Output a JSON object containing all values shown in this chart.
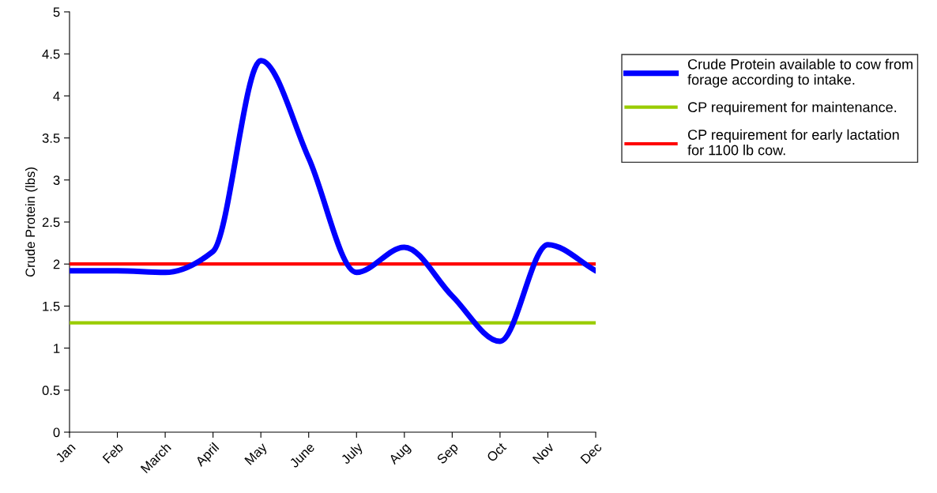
{
  "chart_data": {
    "type": "line",
    "ylabel": "Crude Protein (lbs)",
    "categories": [
      "Jan",
      "Feb",
      "March",
      "April",
      "May",
      "June",
      "July",
      "Aug",
      "Sep",
      "Oct",
      "Nov",
      "Dec"
    ],
    "series": [
      {
        "name": "Crude Protein available to cow from forage according to intake.",
        "color": "#0000ff",
        "values": [
          1.92,
          1.92,
          1.9,
          2.15,
          4.42,
          3.26,
          1.9,
          2.2,
          1.62,
          1.08,
          2.23,
          1.92
        ]
      },
      {
        "name": "CP requirement for maintenance.",
        "color": "#99cc00",
        "values": [
          1.3,
          1.3,
          1.3,
          1.3,
          1.3,
          1.3,
          1.3,
          1.3,
          1.3,
          1.3,
          1.3,
          1.3
        ]
      },
      {
        "name": "CP requirement for early lactation for 1100 lb cow.",
        "color": "#ff0000",
        "values": [
          2,
          2,
          2,
          2,
          2,
          2,
          2,
          2,
          2,
          2,
          2,
          2
        ]
      }
    ],
    "ylim": [
      0,
      5
    ],
    "yticks": [
      0,
      0.5,
      1,
      1.5,
      2,
      2.5,
      3,
      3.5,
      4,
      4.5,
      5
    ],
    "grid": false,
    "legend": "right",
    "marker": "none",
    "line_style": "solid"
  }
}
